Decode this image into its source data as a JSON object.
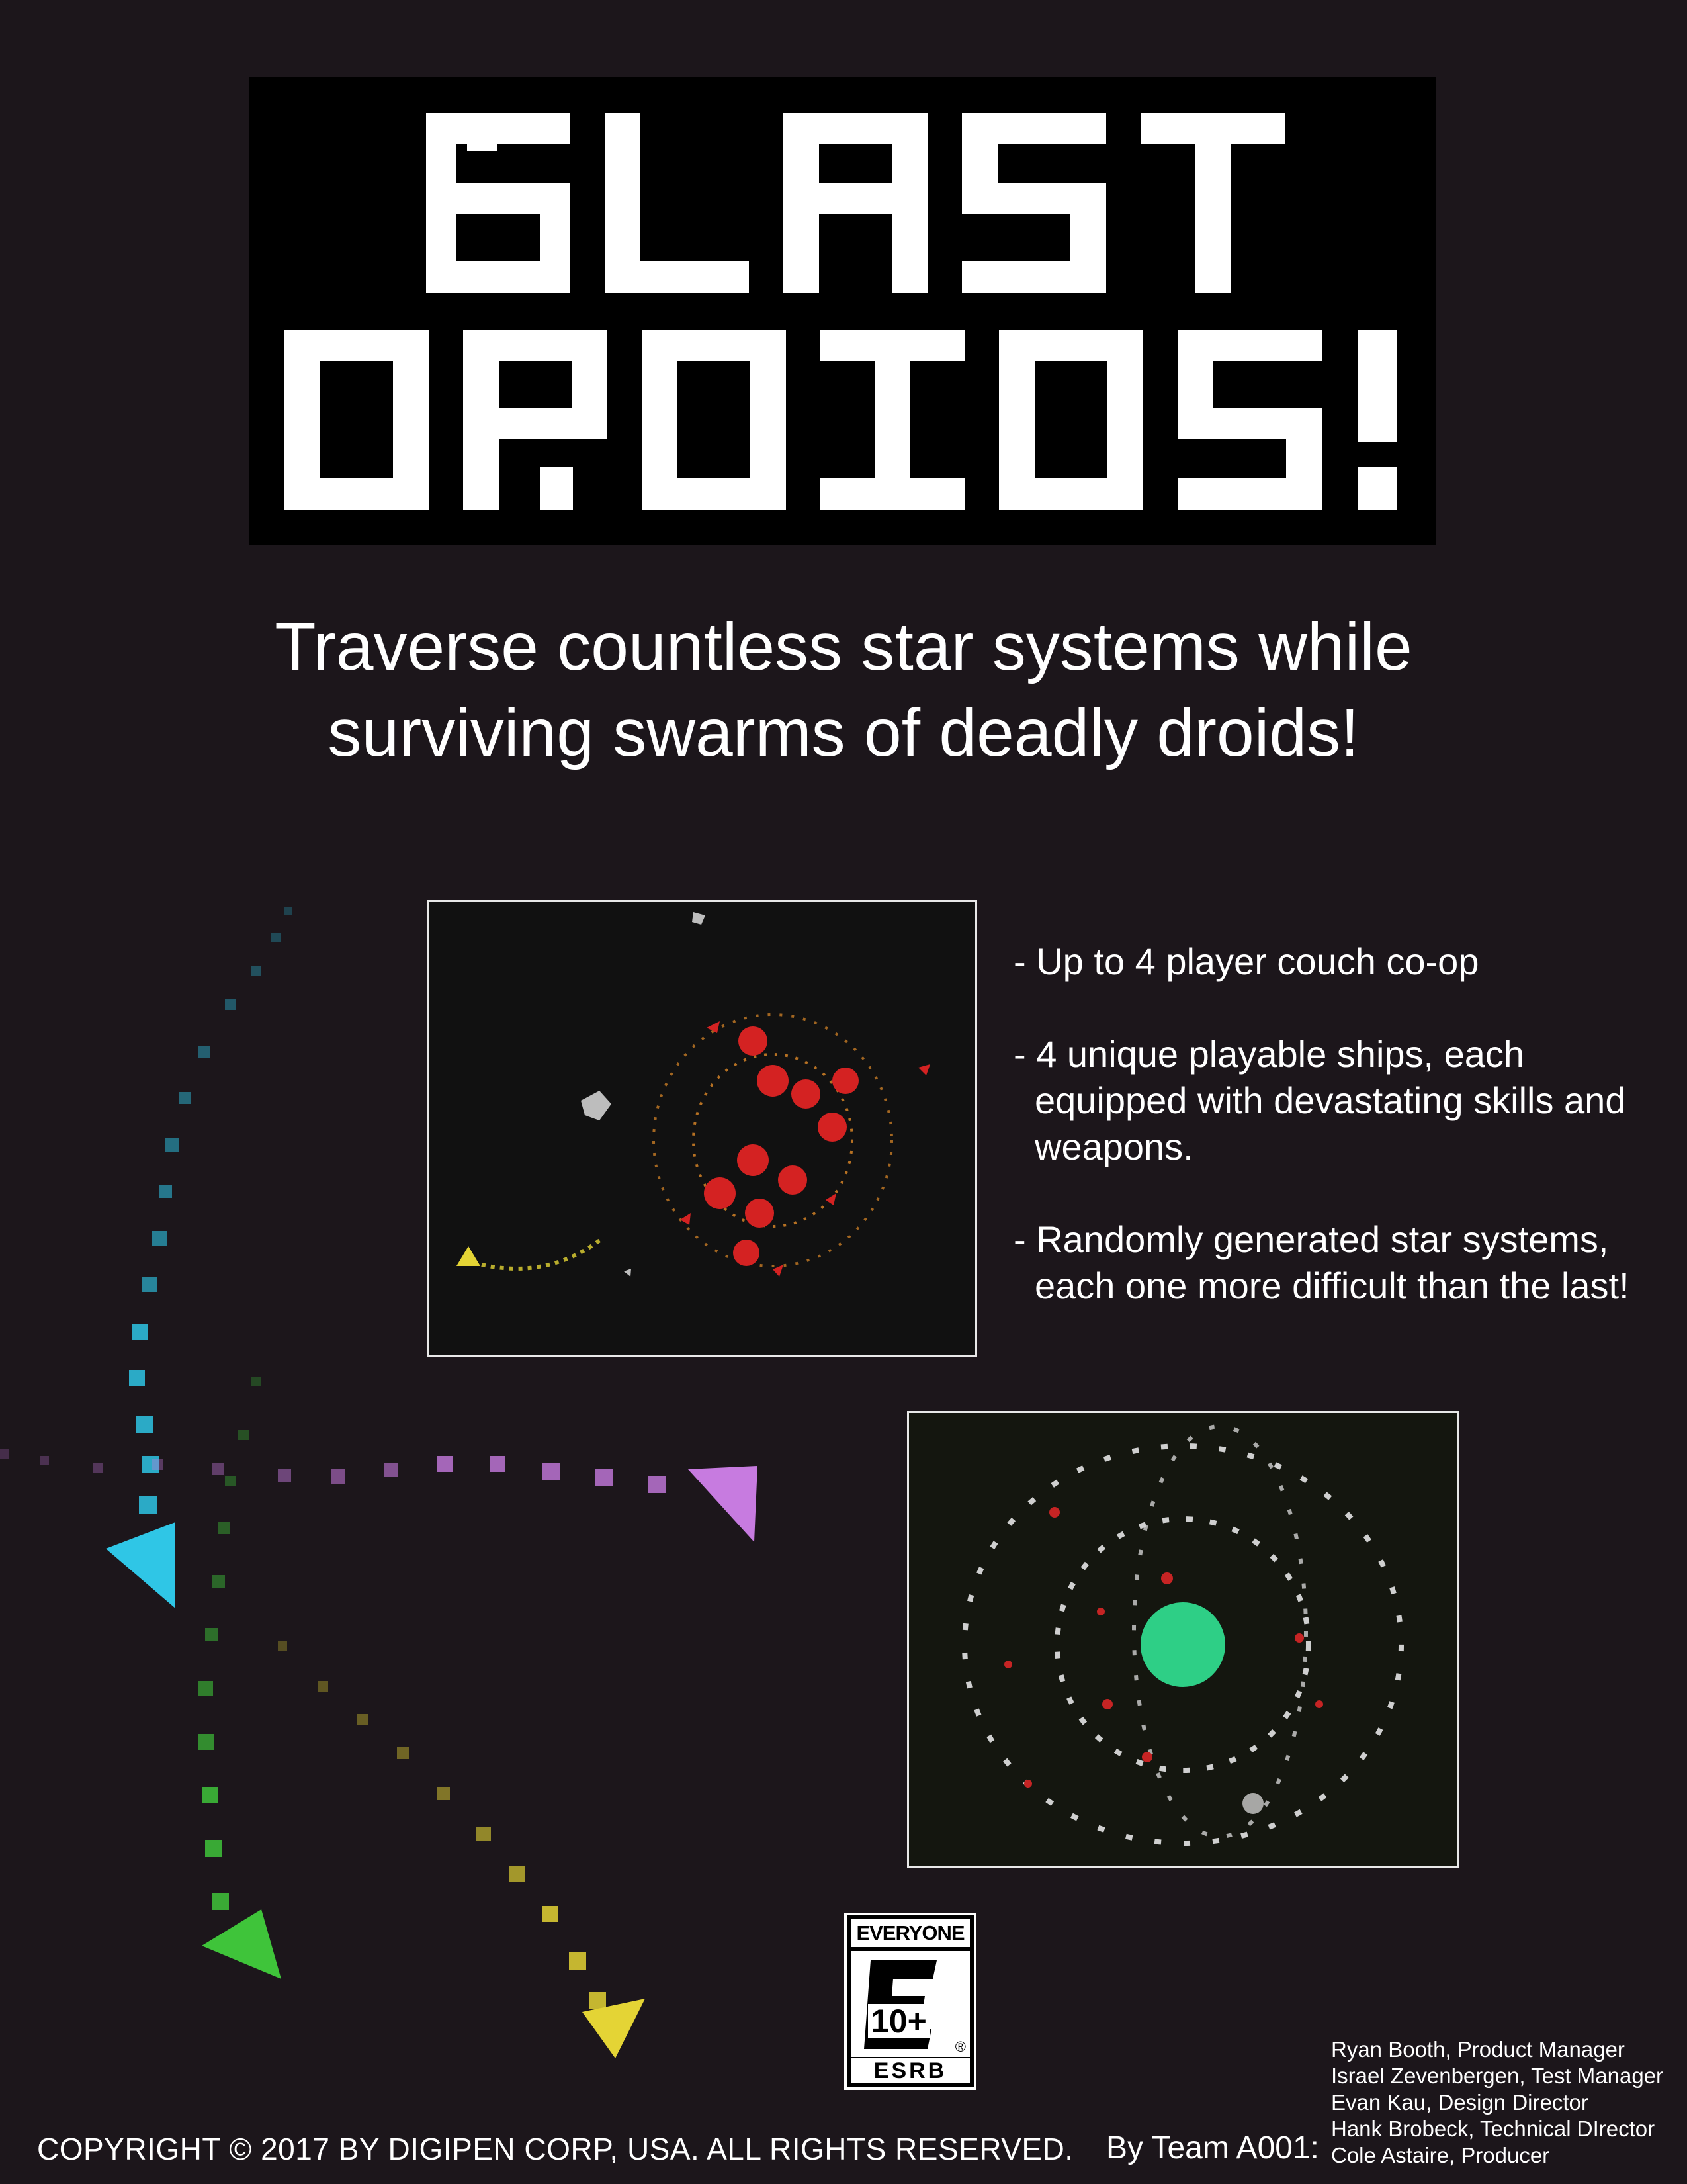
{
  "logo": {
    "line1": "BLAST",
    "line2": "DROIDS!"
  },
  "tagline": {
    "line1": "Traverse countless star systems while",
    "line2": "surviving swarms of deadly droids!"
  },
  "features": [
    "- Up to 4 player couch co-op",
    "- 4 unique playable ships, each equipped with devastating skills and weapons.",
    "- Randomly generated star systems, each one more difficult than the last!"
  ],
  "esrb": {
    "rating": "EVERYONE 10+",
    "badge": "10+",
    "brand": "ESRB"
  },
  "copyright": "COPYRIGHT © 2017 BY DIGIPEN CORP, USA. ALL RIGHTS RESERVED.",
  "team_label": "By Team A001:",
  "credits": [
    "Ryan Booth, Product Manager",
    "Israel Zevenbergen, Test Manager",
    "Evan Kau, Design Director",
    "Hank Brobeck, Technical DIrector",
    "Cole Astaire, Producer"
  ],
  "colors": {
    "background": "#1c161b",
    "cyan_ship": "#2fc6e6",
    "magenta_ship": "#c77be0",
    "green_ship": "#3fc43a",
    "yellow_ship": "#e4d435",
    "planet": "#2ecf86"
  }
}
